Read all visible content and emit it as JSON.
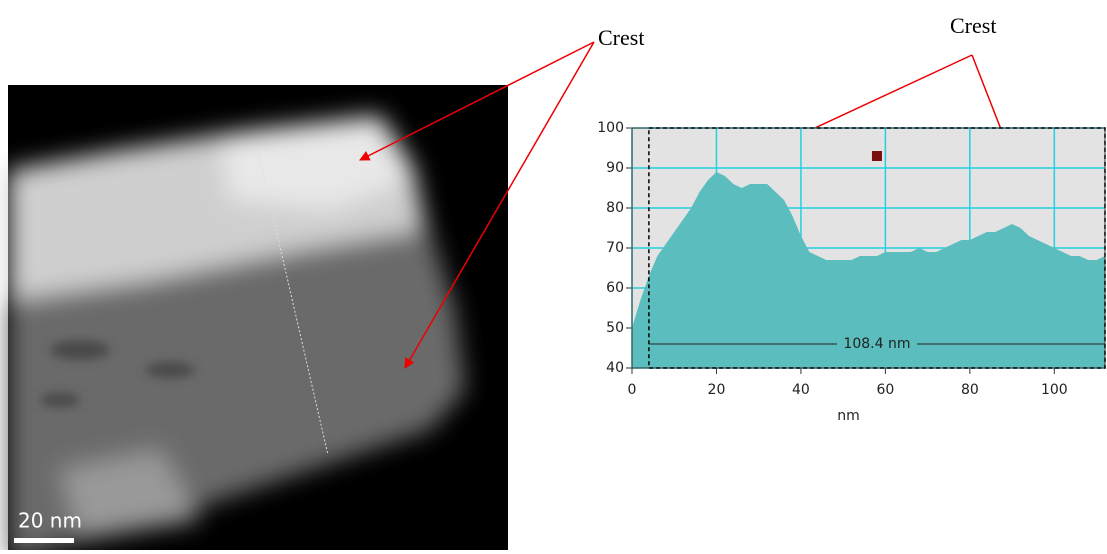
{
  "chart_data": {
    "type": "area",
    "x_label": "nm",
    "x": [
      0,
      2,
      4,
      6,
      8,
      10,
      12,
      14,
      16,
      18,
      20,
      22,
      24,
      26,
      28,
      30,
      32,
      34,
      36,
      38,
      40,
      42,
      44,
      46,
      48,
      50,
      52,
      54,
      56,
      58,
      60,
      62,
      64,
      66,
      68,
      70,
      72,
      74,
      76,
      78,
      80,
      82,
      84,
      86,
      88,
      90,
      92,
      94,
      96,
      98,
      100,
      102,
      104,
      106,
      108,
      110,
      112
    ],
    "series": [
      {
        "color": "#5bbdbd",
        "values": [
          50,
          57,
          63,
          68,
          71,
          74,
          77,
          80,
          84,
          87,
          89,
          88,
          86,
          85,
          86,
          86,
          86,
          84,
          82,
          78,
          73,
          69,
          68,
          67,
          67,
          67,
          67,
          68,
          68,
          68,
          69,
          69,
          69,
          69,
          70,
          69,
          69,
          70,
          71,
          72,
          72,
          73,
          74,
          74,
          75,
          76,
          75,
          73,
          72,
          71,
          70,
          69,
          68,
          68,
          67,
          67,
          68
        ]
      }
    ],
    "xlim": [
      0,
      112
    ],
    "xticks": [
      0,
      20,
      40,
      60,
      80,
      100
    ],
    "ylim": [
      40,
      100
    ],
    "yticks": [
      40,
      50,
      60,
      70,
      80,
      90,
      100
    ],
    "grid": true,
    "grid_color": "#22d0e0",
    "background": "#e3e3e3",
    "marker": {
      "x": 58,
      "y": 93,
      "color": "#7a0e0e"
    },
    "measurement": {
      "label": "108.4 nm",
      "x": [
        4,
        112
      ],
      "y": 46
    },
    "annotations": [
      {
        "text": "Crest"
      },
      {
        "text": "Crest"
      }
    ],
    "image_scale_label": "20 nm"
  }
}
